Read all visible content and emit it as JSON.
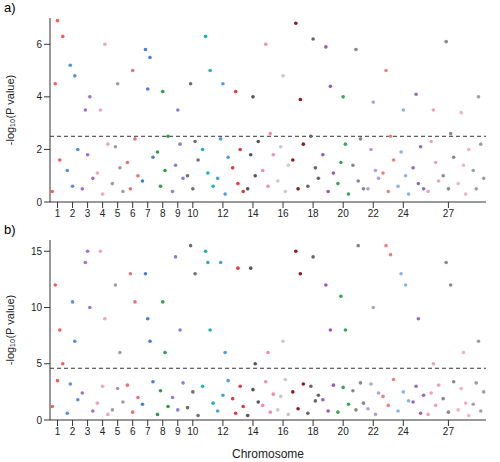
{
  "chart_data": [
    {
      "type": "scatter",
      "title": "a)",
      "y_label": "-log₁₀(P value)",
      "xlim": [
        0.5,
        29.5
      ],
      "xticks": [
        1,
        2,
        3,
        4,
        5,
        6,
        7,
        8,
        9,
        10,
        12,
        14,
        16,
        18,
        20,
        22,
        24,
        27
      ],
      "ylim": [
        0,
        7
      ],
      "yticks": [
        0,
        2,
        4,
        6
      ],
      "threshold": 2.5,
      "series": [
        {
          "color": "#f25f5c",
          "x": [
            0.65,
            0.85,
            1,
            1.15,
            1.35
          ],
          "values": [
            0.4,
            4.5,
            6.9,
            1.6,
            6.3
          ]
        },
        {
          "color": "#5b8fd8",
          "x": [
            1.65,
            1.85,
            2,
            2.15,
            2.35
          ],
          "values": [
            1.2,
            5.2,
            0.6,
            4.8,
            2.0
          ]
        },
        {
          "color": "#a36fd0",
          "x": [
            2.65,
            2.85,
            3,
            3.15,
            3.35
          ],
          "values": [
            0.5,
            3.5,
            1.8,
            4.0,
            0.9
          ]
        },
        {
          "color": "#f4a3c0",
          "x": [
            3.65,
            3.85,
            4,
            4.15,
            4.35
          ],
          "values": [
            1.1,
            3.5,
            0.3,
            6.0,
            2.2
          ]
        },
        {
          "color": "#9e9e9e",
          "x": [
            4.65,
            4.85,
            5,
            5.15,
            5.35
          ],
          "values": [
            0.7,
            2.1,
            4.5,
            1.3,
            0.4
          ]
        },
        {
          "color": "#e9717a",
          "x": [
            5.65,
            5.85,
            6,
            6.15,
            6.35
          ],
          "values": [
            1.5,
            0.5,
            5.0,
            2.4,
            1.0
          ]
        },
        {
          "color": "#4a7fd0",
          "x": [
            6.65,
            6.85,
            7,
            7.15,
            7.35
          ],
          "values": [
            0.8,
            5.8,
            4.3,
            5.5,
            1.7
          ]
        },
        {
          "color": "#2e9e4f",
          "x": [
            7.65,
            7.85,
            8,
            8.15,
            8.35
          ],
          "values": [
            1.9,
            0.6,
            4.2,
            1.2,
            2.5
          ]
        },
        {
          "color": "#8a7fd6",
          "x": [
            8.65,
            8.85,
            9,
            9.15,
            9.35
          ],
          "values": [
            0.4,
            1.4,
            3.5,
            2.2,
            0.9
          ]
        },
        {
          "color": "#6f6f6f",
          "x": [
            9.65,
            9.85,
            10,
            10.15,
            10.35
          ],
          "values": [
            1.0,
            4.5,
            0.5,
            2.3,
            1.6
          ]
        },
        {
          "color": "#1fb5b5",
          "x": [
            10.65,
            10.85,
            11,
            11.15,
            11.35
          ],
          "values": [
            2.0,
            6.3,
            1.1,
            5.0,
            0.6
          ]
        },
        {
          "color": "#4f9fe0",
          "x": [
            11.65,
            11.85,
            12,
            12.15,
            12.35
          ],
          "values": [
            0.9,
            2.4,
            4.5,
            0.3,
            1.7
          ]
        },
        {
          "color": "#e23b3b",
          "x": [
            12.65,
            12.85,
            13,
            13.15,
            13.35
          ],
          "values": [
            1.3,
            4.2,
            0.7,
            2.0,
            0.4
          ]
        },
        {
          "color": "#555555",
          "x": [
            13.65,
            13.85,
            14,
            14.15,
            14.35
          ],
          "values": [
            0.5,
            1.8,
            4.0,
            1.0,
            2.3
          ]
        },
        {
          "color": "#f48cb0",
          "x": [
            14.65,
            14.85,
            15,
            15.15,
            15.35
          ],
          "values": [
            1.2,
            6.0,
            0.6,
            2.6,
            1.8
          ]
        },
        {
          "color": "#c9c9c9",
          "x": [
            15.65,
            15.85,
            16,
            16.15,
            16.35
          ],
          "values": [
            0.8,
            2.1,
            4.8,
            0.4,
            1.4
          ]
        },
        {
          "color": "#8b1c1c",
          "x": [
            16.65,
            16.85,
            17,
            17.15,
            17.35
          ],
          "values": [
            1.6,
            6.8,
            0.5,
            3.9,
            2.2
          ]
        },
        {
          "color": "#666666",
          "x": [
            17.65,
            17.85,
            18,
            18.15,
            18.35
          ],
          "values": [
            0.6,
            2.5,
            6.2,
            1.3,
            0.9
          ]
        },
        {
          "color": "#9b59b6",
          "x": [
            18.65,
            18.85,
            19,
            19.15,
            19.35
          ],
          "values": [
            1.8,
            5.9,
            0.4,
            4.4,
            1.1
          ]
        },
        {
          "color": "#3aa655",
          "x": [
            19.65,
            19.85,
            20,
            20.15,
            20.35
          ],
          "values": [
            0.7,
            1.5,
            4.0,
            2.2,
            0.3
          ]
        },
        {
          "color": "#888888",
          "x": [
            20.65,
            20.85,
            21,
            21.15,
            21.35
          ],
          "values": [
            1.4,
            5.8,
            0.8,
            2.4,
            0.5
          ]
        },
        {
          "color": "#b39ddb",
          "x": [
            21.65,
            21.85,
            22,
            22.15,
            22.35
          ],
          "values": [
            0.5,
            2.0,
            3.8,
            1.2,
            0.9
          ]
        },
        {
          "color": "#f08080",
          "x": [
            22.65,
            22.85,
            23,
            23.15,
            23.35
          ],
          "values": [
            1.1,
            5.0,
            0.4,
            2.5,
            1.6
          ]
        },
        {
          "color": "#87b5e8",
          "x": [
            23.65,
            23.85,
            24,
            24.15,
            24.35
          ],
          "values": [
            0.6,
            1.9,
            3.5,
            1.0,
            0.3
          ]
        },
        {
          "color": "#8e6cc0",
          "x": [
            24.65,
            24.85,
            25,
            25.15,
            25.35
          ],
          "values": [
            1.3,
            4.1,
            0.7,
            2.1,
            0.5
          ]
        },
        {
          "color": "#f2a0b8",
          "x": [
            25.65,
            25.85,
            26,
            26.15,
            26.35
          ],
          "values": [
            0.4,
            2.3,
            3.5,
            1.5,
            0.8
          ]
        },
        {
          "color": "#8a8a8a",
          "x": [
            26.65,
            26.85,
            27,
            27.15,
            27.35
          ],
          "values": [
            1.0,
            6.1,
            0.5,
            2.6,
            1.7
          ]
        },
        {
          "color": "#f4b0c8",
          "x": [
            27.65,
            27.85,
            28,
            28.15,
            28.35
          ],
          "values": [
            0.7,
            3.4,
            1.4,
            0.3,
            2.0
          ]
        },
        {
          "color": "#a0a0a0",
          "x": [
            28.65,
            28.85,
            29,
            29.15,
            29.35
          ],
          "values": [
            1.2,
            0.5,
            4.0,
            2.2,
            0.9
          ]
        }
      ]
    },
    {
      "type": "scatter",
      "title": "b)",
      "x_label": "Chromosome",
      "y_label": "-log₁₀(P value)",
      "xlim": [
        0.5,
        29.5
      ],
      "xticks": [
        1,
        2,
        3,
        4,
        5,
        6,
        7,
        8,
        9,
        10,
        12,
        14,
        16,
        18,
        20,
        22,
        24,
        27
      ],
      "ylim": [
        0,
        16
      ],
      "yticks": [
        0,
        5,
        10,
        15
      ],
      "threshold": 4.6,
      "series": [
        {
          "color": "#f25f5c",
          "x": [
            0.65,
            0.85,
            1,
            1.15,
            1.35
          ],
          "values": [
            1.2,
            12.0,
            3.5,
            8.0,
            5.0
          ]
        },
        {
          "color": "#5b8fd8",
          "x": [
            1.65,
            1.85,
            2,
            2.15,
            2.35
          ],
          "values": [
            0.6,
            3.2,
            10.5,
            7.0,
            1.8
          ]
        },
        {
          "color": "#a36fd0",
          "x": [
            2.65,
            2.85,
            3,
            3.15,
            3.35
          ],
          "values": [
            2.4,
            14.0,
            15.0,
            10.0,
            0.8
          ]
        },
        {
          "color": "#f4a3c0",
          "x": [
            3.65,
            3.85,
            4,
            4.15,
            4.35
          ],
          "values": [
            1.5,
            15.0,
            3.0,
            9.0,
            0.5
          ]
        },
        {
          "color": "#9e9e9e",
          "x": [
            4.65,
            4.85,
            5,
            5.15,
            5.35
          ],
          "values": [
            0.9,
            12.0,
            2.8,
            6.0,
            1.6
          ]
        },
        {
          "color": "#e9717a",
          "x": [
            5.65,
            5.85,
            6,
            6.15,
            6.35
          ],
          "values": [
            3.1,
            13.0,
            0.7,
            10.5,
            2.0
          ]
        },
        {
          "color": "#4a7fd0",
          "x": [
            6.65,
            6.85,
            7,
            7.15,
            7.35
          ],
          "values": [
            1.4,
            13.0,
            9.0,
            7.0,
            3.4
          ]
        },
        {
          "color": "#2e9e4f",
          "x": [
            7.65,
            7.85,
            8,
            8.15,
            8.35
          ],
          "values": [
            0.5,
            2.6,
            10.5,
            6.0,
            1.2
          ]
        },
        {
          "color": "#8a7fd6",
          "x": [
            8.65,
            8.85,
            9,
            9.15,
            9.35
          ],
          "values": [
            2.0,
            14.5,
            0.9,
            8.0,
            3.3
          ]
        },
        {
          "color": "#6f6f6f",
          "x": [
            9.65,
            9.85,
            10,
            10.15,
            10.35
          ],
          "values": [
            1.1,
            15.5,
            2.5,
            13.0,
            0.4
          ]
        },
        {
          "color": "#1fb5b5",
          "x": [
            10.65,
            10.85,
            11,
            11.15,
            11.35
          ],
          "values": [
            3.0,
            15.0,
            14.0,
            8.0,
            1.5
          ]
        },
        {
          "color": "#4f9fe0",
          "x": [
            11.65,
            11.85,
            12,
            12.15,
            12.35
          ],
          "values": [
            0.8,
            14.0,
            2.2,
            6.0,
            3.5
          ]
        },
        {
          "color": "#e23b3b",
          "x": [
            12.65,
            12.85,
            13,
            13.15,
            13.35
          ],
          "values": [
            1.9,
            0.6,
            13.5,
            3.0,
            1.2
          ]
        },
        {
          "color": "#555555",
          "x": [
            13.65,
            13.85,
            14,
            14.15,
            14.35
          ],
          "values": [
            0.4,
            13.5,
            2.7,
            5.0,
            1.6
          ]
        },
        {
          "color": "#f48cb0",
          "x": [
            14.65,
            14.85,
            15,
            15.15,
            15.35
          ],
          "values": [
            1.3,
            3.4,
            6.0,
            0.7,
            2.3
          ]
        },
        {
          "color": "#c9c9c9",
          "x": [
            15.65,
            15.85,
            16,
            16.15,
            16.35
          ],
          "values": [
            0.9,
            2.1,
            7.0,
            3.6,
            0.5
          ]
        },
        {
          "color": "#8b1c1c",
          "x": [
            16.65,
            16.85,
            17,
            17.15,
            17.35
          ],
          "values": [
            2.5,
            15.0,
            1.0,
            13.0,
            3.2
          ]
        },
        {
          "color": "#666666",
          "x": [
            17.65,
            17.85,
            18,
            18.15,
            18.35
          ],
          "values": [
            0.6,
            3.0,
            14.5,
            1.7,
            2.2
          ]
        },
        {
          "color": "#9b59b6",
          "x": [
            18.65,
            18.85,
            19,
            19.15,
            19.35
          ],
          "values": [
            1.8,
            12.0,
            0.8,
            8.0,
            3.1
          ]
        },
        {
          "color": "#3aa655",
          "x": [
            19.65,
            19.85,
            20,
            20.15,
            20.35
          ],
          "values": [
            0.7,
            11.0,
            2.9,
            8.0,
            1.4
          ]
        },
        {
          "color": "#888888",
          "x": [
            20.65,
            20.85,
            21,
            21.15,
            21.35
          ],
          "values": [
            2.6,
            0.9,
            15.5,
            3.3,
            1.5
          ]
        },
        {
          "color": "#b39ddb",
          "x": [
            21.65,
            21.85,
            22,
            22.15,
            22.35
          ],
          "values": [
            1.0,
            3.2,
            10.0,
            0.5,
            2.4
          ]
        },
        {
          "color": "#f08080",
          "x": [
            22.65,
            22.85,
            23,
            23.15,
            23.35
          ],
          "values": [
            2.1,
            15.5,
            1.3,
            14.7,
            3.6
          ]
        },
        {
          "color": "#87b5e8",
          "x": [
            23.65,
            23.85,
            24,
            24.15,
            24.35
          ],
          "values": [
            0.8,
            13.0,
            2.5,
            12.0,
            1.7
          ]
        },
        {
          "color": "#8e6cc0",
          "x": [
            24.65,
            24.85,
            25,
            25.15,
            25.35
          ],
          "values": [
            1.6,
            3.0,
            9.0,
            0.6,
            2.2
          ]
        },
        {
          "color": "#f2a0b8",
          "x": [
            25.65,
            25.85,
            26,
            26.15,
            26.35
          ],
          "values": [
            0.5,
            2.4,
            5.0,
            1.3,
            3.1
          ]
        },
        {
          "color": "#8a8a8a",
          "x": [
            26.65,
            26.85,
            27,
            27.15,
            27.35
          ],
          "values": [
            1.9,
            14.0,
            0.7,
            12.0,
            3.4
          ]
        },
        {
          "color": "#f4b0c8",
          "x": [
            27.65,
            27.85,
            28,
            28.15,
            28.35
          ],
          "values": [
            0.9,
            2.8,
            6.0,
            1.5,
            0.4
          ]
        },
        {
          "color": "#a0a0a0",
          "x": [
            28.65,
            28.85,
            29,
            29.15,
            29.35
          ],
          "values": [
            1.4,
            3.3,
            7.0,
            0.8,
            2.5
          ]
        }
      ]
    }
  ]
}
